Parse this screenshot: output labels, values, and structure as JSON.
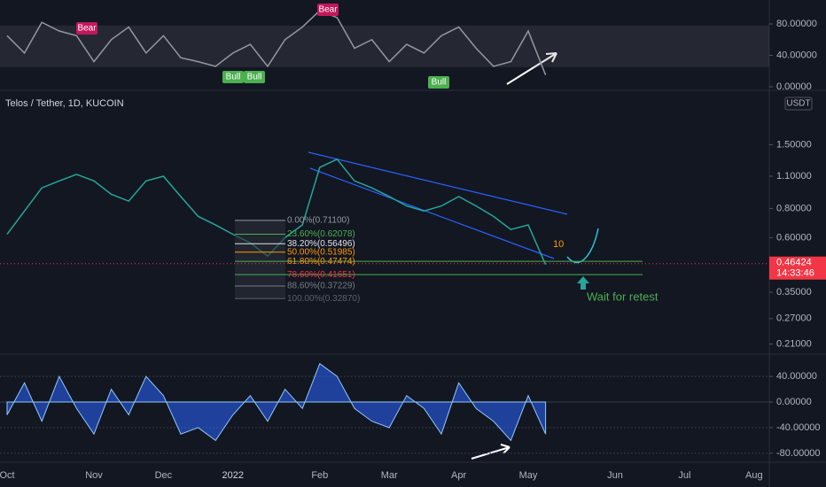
{
  "chart_data": [
    {
      "type": "line",
      "ylim": [
        0,
        110
      ],
      "yticks": [
        {
          "value": 80,
          "label": "80.00000"
        },
        {
          "value": 40,
          "label": "40.00000"
        },
        {
          "value": 0,
          "label": "0.00000"
        }
      ],
      "band": [
        25,
        78
      ],
      "color": "#9598a1",
      "annotations": [
        "Bear",
        "Bear",
        "Bull",
        "Bull",
        "Bull"
      ],
      "values": [
        65,
        43,
        82,
        71,
        65,
        32,
        60,
        76,
        43,
        65,
        37,
        32,
        26,
        43,
        54,
        26,
        60,
        76,
        97,
        88,
        49,
        60,
        32,
        54,
        43,
        65,
        76,
        49,
        26,
        32,
        71,
        15,
        null,
        null,
        null,
        null,
        null,
        null,
        null,
        null,
        null,
        null,
        null,
        null,
        null,
        null,
        null
      ]
    },
    {
      "type": "line",
      "title": "Telos / Tether, 1D, KUCOIN",
      "unit": "USDT",
      "log_scale": true,
      "ylim": [
        0.19,
        2.5
      ],
      "yticks": [
        {
          "value": 1.5,
          "label": "1.50000"
        },
        {
          "value": 1.1,
          "label": "1.10000"
        },
        {
          "value": 0.8,
          "label": "0.80000"
        },
        {
          "value": 0.6,
          "label": "0.60000"
        },
        {
          "value": 0.35,
          "label": "0.35000"
        },
        {
          "value": 0.27,
          "label": "0.27000"
        },
        {
          "value": 0.21,
          "label": "0.21000"
        }
      ],
      "last_price": {
        "value": 0.46424,
        "label": "0.46424"
      },
      "countdown": "14:33:46",
      "categories": [
        "Oct",
        null,
        null,
        null,
        null,
        "Nov",
        null,
        null,
        null,
        "Dec",
        null,
        null,
        null,
        "2022",
        null,
        null,
        null,
        null,
        "Feb",
        null,
        null,
        null,
        "Mar",
        null,
        null,
        null,
        "Apr",
        null,
        null,
        null,
        "May",
        null,
        null,
        null,
        null,
        "Jun",
        null,
        null,
        null,
        "Jul",
        null,
        null,
        null,
        "Aug",
        null,
        null,
        null
      ],
      "color": "#26a69a",
      "values": [
        0.62,
        0.78,
        0.98,
        1.05,
        1.12,
        1.05,
        0.92,
        0.86,
        1.05,
        1.1,
        0.9,
        0.74,
        0.68,
        0.62,
        0.57,
        0.5,
        0.6,
        0.68,
        1.2,
        1.3,
        1.05,
        0.98,
        0.9,
        0.82,
        0.78,
        0.82,
        0.9,
        0.82,
        0.74,
        0.65,
        0.68,
        0.46,
        null,
        null,
        null,
        null,
        null,
        null,
        null,
        null,
        null,
        null,
        null,
        null,
        null,
        null,
        null
      ],
      "fib_levels": [
        {
          "value": 0.711,
          "label": "0.00%(0.71100)",
          "color": "#9598a1"
        },
        {
          "value": 0.62078,
          "label": "23.60%(0.62078)",
          "color": "#4caf50"
        },
        {
          "value": 0.56496,
          "label": "38.20%(0.56496)",
          "color": "#e0e3eb"
        },
        {
          "value": 0.51985,
          "label": "50.00%(0.51985)",
          "color": "#ff9800"
        },
        {
          "value": 0.47474,
          "label": "61.80%(0.47474)",
          "color": "#ff9800"
        },
        {
          "value": 0.41651,
          "label": "78.60%(0.41651)",
          "color": "#f23645"
        },
        {
          "value": 0.37229,
          "label": "88.60%(0.37229)",
          "color": "#787b86"
        },
        {
          "value": 0.3287,
          "label": "100.00%(0.32870)",
          "color": "#5d606b"
        }
      ],
      "annotations": [
        "10",
        "Wait for retest"
      ]
    },
    {
      "type": "area",
      "ylim": [
        -94,
        72
      ],
      "yticks": [
        {
          "value": 40,
          "label": "40.00000"
        },
        {
          "value": 0,
          "label": "0.00000"
        },
        {
          "value": -40,
          "label": "-40.00000"
        },
        {
          "value": -80,
          "label": "-80.00000"
        }
      ],
      "color": "#2962ff",
      "values": [
        -20,
        30,
        -30,
        40,
        -10,
        -50,
        20,
        -20,
        40,
        10,
        -50,
        -40,
        -60,
        -20,
        10,
        -30,
        20,
        -10,
        60,
        40,
        -10,
        -30,
        -40,
        10,
        -10,
        -50,
        30,
        -10,
        -30,
        -60,
        10,
        -50,
        null,
        null,
        null,
        null,
        null,
        null,
        null,
        null,
        null,
        null,
        null,
        null,
        null,
        null,
        null
      ]
    }
  ]
}
